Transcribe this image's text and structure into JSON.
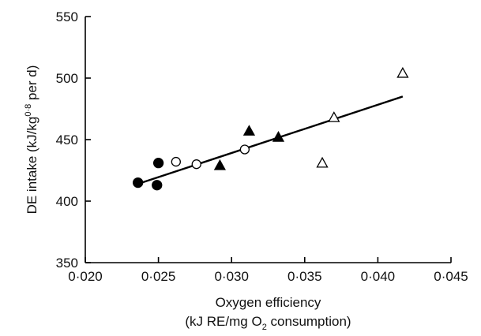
{
  "chart_data": {
    "type": "scatter",
    "title": "",
    "xlabel": {
      "line1": "Oxygen efficiency",
      "line2_pre": "(kJ RE/mg O",
      "line2_sub": "2",
      "line2_post": " consumption)"
    },
    "ylabel": {
      "pre": "DE intake (kJ/kg",
      "sup": "0·8",
      "post": " per d)"
    },
    "xlim": [
      0.02,
      0.045
    ],
    "ylim": [
      350,
      550
    ],
    "xticks": [
      {
        "value": 0.02,
        "label": "0·020"
      },
      {
        "value": 0.025,
        "label": "0·025"
      },
      {
        "value": 0.03,
        "label": "0·030"
      },
      {
        "value": 0.035,
        "label": "0·035"
      },
      {
        "value": 0.04,
        "label": "0·040"
      },
      {
        "value": 0.045,
        "label": "0·045"
      }
    ],
    "yticks": [
      {
        "value": 350,
        "label": "350"
      },
      {
        "value": 400,
        "label": "400"
      },
      {
        "value": 450,
        "label": "450"
      },
      {
        "value": 500,
        "label": "500"
      },
      {
        "value": 550,
        "label": "550"
      }
    ],
    "grid": false,
    "series": [
      {
        "marker": "filled-circle",
        "color": "#000000",
        "points": [
          [
            0.0236,
            415
          ],
          [
            0.0249,
            413
          ],
          [
            0.025,
            431
          ]
        ]
      },
      {
        "marker": "open-circle",
        "color": "#000000",
        "points": [
          [
            0.0262,
            432
          ],
          [
            0.0276,
            430
          ],
          [
            0.0309,
            442
          ]
        ]
      },
      {
        "marker": "filled-triangle",
        "color": "#000000",
        "points": [
          [
            0.0292,
            429
          ],
          [
            0.0312,
            457
          ],
          [
            0.0332,
            452
          ]
        ]
      },
      {
        "marker": "open-triangle",
        "color": "#000000",
        "points": [
          [
            0.0362,
            431
          ],
          [
            0.037,
            468
          ],
          [
            0.0417,
            504
          ]
        ]
      }
    ],
    "regression": {
      "x": [
        0.0236,
        0.0417
      ],
      "y": [
        414,
        485
      ]
    }
  }
}
